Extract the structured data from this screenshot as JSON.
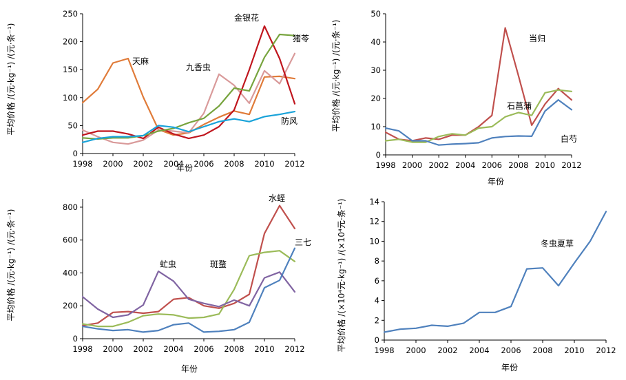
{
  "chart_data": [
    {
      "type": "line",
      "xlabel": "年份",
      "ylabel": "平均价格 /(元·kg⁻¹) /(元·条⁻¹)",
      "xticks": [
        "1998",
        "2000",
        "2002",
        "2004",
        "2006",
        "2008",
        "2010",
        "2012"
      ],
      "yticks": [
        "0",
        "50",
        "100",
        "150",
        "200",
        "250"
      ],
      "xlim": [
        1998,
        2012
      ],
      "ylim": [
        0,
        250
      ],
      "series": [
        {
          "name": "天麻",
          "color": "#e07b39",
          "x": [
            1998,
            1999,
            2000,
            2001,
            2002,
            2003,
            2004,
            2005,
            2006,
            2007,
            2008,
            2009,
            2010,
            2011,
            2012
          ],
          "y": [
            91,
            115,
            162,
            170,
            101,
            43,
            33,
            37,
            52,
            65,
            76,
            70,
            137,
            138,
            134
          ]
        },
        {
          "name": "九香虫",
          "color": "#d99a9a",
          "x": [
            1998,
            1999,
            2000,
            2001,
            2002,
            2003,
            2004,
            2005,
            2006,
            2007,
            2008,
            2009,
            2010,
            2011,
            2012
          ],
          "y": [
            42,
            30,
            20,
            17,
            24,
            42,
            40,
            37,
            72,
            142,
            122,
            90,
            148,
            125,
            179
          ]
        },
        {
          "name": "金银花",
          "color": "#c0161e",
          "x": [
            1998,
            1999,
            2000,
            2001,
            2002,
            2003,
            2004,
            2005,
            2006,
            2007,
            2008,
            2009,
            2010,
            2011,
            2012
          ],
          "y": [
            33,
            40,
            40,
            35,
            27,
            47,
            35,
            27,
            33,
            48,
            78,
            150,
            228,
            170,
            89
          ]
        },
        {
          "name": "猪苓",
          "color": "#77a43e",
          "x": [
            1998,
            1999,
            2000,
            2001,
            2002,
            2003,
            2004,
            2005,
            2006,
            2007,
            2008,
            2009,
            2010,
            2011,
            2012
          ],
          "y": [
            28,
            26,
            28,
            28,
            32,
            40,
            45,
            55,
            63,
            85,
            117,
            112,
            172,
            213,
            211
          ]
        },
        {
          "name": "防风",
          "color": "#1aa3d9",
          "x": [
            1998,
            1999,
            2000,
            2001,
            2002,
            2003,
            2004,
            2005,
            2006,
            2007,
            2008,
            2009,
            2010,
            2011,
            2012
          ],
          "y": [
            20,
            27,
            30,
            30,
            32,
            50,
            47,
            39,
            48,
            57,
            62,
            57,
            66,
            70,
            75
          ]
        }
      ]
    },
    {
      "type": "line",
      "xlabel": "年份",
      "ylabel": "平均价格 /(元·kg⁻¹) /(元·条⁻¹)",
      "xticks": [
        "1998",
        "2000",
        "2002",
        "2004",
        "2006",
        "2008",
        "2010",
        "2012"
      ],
      "yticks": [
        "0",
        "10",
        "20",
        "30",
        "40",
        "50"
      ],
      "xlim": [
        1998,
        2012
      ],
      "ylim": [
        0,
        50
      ],
      "series": [
        {
          "name": "当归",
          "color": "#c0504d",
          "x": [
            1998,
            1999,
            2000,
            2001,
            2002,
            2003,
            2004,
            2005,
            2006,
            2007,
            2008,
            2009,
            2010,
            2011,
            2012
          ],
          "y": [
            8,
            5.5,
            5,
            6,
            5.5,
            7,
            7,
            10,
            14,
            45,
            28,
            10.5,
            18,
            23.5,
            19.5
          ]
        },
        {
          "name": "石菖蒲",
          "color": "#9bbb59",
          "x": [
            1998,
            1999,
            2000,
            2001,
            2002,
            2003,
            2004,
            2005,
            2006,
            2007,
            2008,
            2009,
            2010,
            2011,
            2012
          ],
          "y": [
            5,
            5.5,
            4.5,
            4.5,
            6.5,
            7.5,
            7,
            9.5,
            10,
            13.5,
            15,
            14,
            22,
            23,
            22.5
          ]
        },
        {
          "name": "白芍",
          "color": "#4f81bd",
          "x": [
            1998,
            1999,
            2000,
            2001,
            2002,
            2003,
            2004,
            2005,
            2006,
            2007,
            2008,
            2009,
            2010,
            2011,
            2012
          ],
          "y": [
            9.5,
            8.5,
            5,
            5,
            3.5,
            3.8,
            4,
            4.3,
            6,
            6.5,
            6.7,
            6.6,
            15.5,
            19.5,
            16
          ]
        }
      ]
    },
    {
      "type": "line",
      "xlabel": "年份",
      "ylabel": "平均价格 /(元·kg⁻¹) /(元·条⁻¹)",
      "xticks": [
        "1998",
        "2000",
        "2002",
        "2004",
        "2006",
        "2008",
        "2010",
        "2012"
      ],
      "yticks": [
        "0",
        "200",
        "400",
        "600",
        "800"
      ],
      "xlim": [
        1998,
        2012
      ],
      "ylim": [
        0,
        850
      ],
      "series": [
        {
          "name": "水蛭",
          "color": "#c0504d",
          "x": [
            1998,
            1999,
            2000,
            2001,
            2002,
            2003,
            2004,
            2005,
            2006,
            2007,
            2008,
            2009,
            2010,
            2011,
            2012
          ],
          "y": [
            80,
            95,
            160,
            165,
            155,
            165,
            240,
            250,
            200,
            185,
            215,
            270,
            640,
            810,
            670
          ]
        },
        {
          "name": "斑蝥",
          "color": "#9bbb59",
          "x": [
            1998,
            1999,
            2000,
            2001,
            2002,
            2003,
            2004,
            2005,
            2006,
            2007,
            2008,
            2009,
            2010,
            2011,
            2012
          ],
          "y": [
            90,
            75,
            75,
            100,
            140,
            150,
            145,
            125,
            130,
            150,
            300,
            505,
            525,
            535,
            470
          ]
        },
        {
          "name": "虻虫",
          "color": "#8064a2",
          "x": [
            1998,
            1999,
            2000,
            2001,
            2002,
            2003,
            2004,
            2005,
            2006,
            2007,
            2008,
            2009,
            2010,
            2011,
            2012
          ],
          "y": [
            255,
            180,
            130,
            145,
            205,
            410,
            350,
            240,
            215,
            195,
            235,
            200,
            370,
            405,
            285
          ]
        },
        {
          "name": "三七",
          "color": "#4f81bd",
          "x": [
            1998,
            1999,
            2000,
            2001,
            2002,
            2003,
            2004,
            2005,
            2006,
            2007,
            2008,
            2009,
            2010,
            2011,
            2012
          ],
          "y": [
            75,
            60,
            50,
            55,
            40,
            50,
            85,
            95,
            40,
            45,
            55,
            100,
            310,
            355,
            550
          ]
        }
      ]
    },
    {
      "type": "line",
      "xlabel": "年份",
      "ylabel": "平均价格 /(×10⁴元·kg⁻¹) /(×10⁴元·条⁻¹)",
      "xticks": [
        "1998",
        "2000",
        "2002",
        "2004",
        "2006",
        "2008",
        "2010",
        "2012"
      ],
      "yticks": [
        "0",
        "2",
        "4",
        "6",
        "8",
        "10",
        "12",
        "14"
      ],
      "xlim": [
        1998,
        2012
      ],
      "ylim": [
        0,
        14
      ],
      "series": [
        {
          "name": "冬虫夏草",
          "color": "#4f81bd",
          "x": [
            1998,
            1999,
            2000,
            2001,
            2002,
            2003,
            2004,
            2005,
            2006,
            2007,
            2008,
            2009,
            2010,
            2011,
            2012
          ],
          "y": [
            0.8,
            1.1,
            1.2,
            1.5,
            1.4,
            1.7,
            2.8,
            2.8,
            3.4,
            7.2,
            7.3,
            5.5,
            7.8,
            10,
            13
          ]
        }
      ]
    }
  ]
}
